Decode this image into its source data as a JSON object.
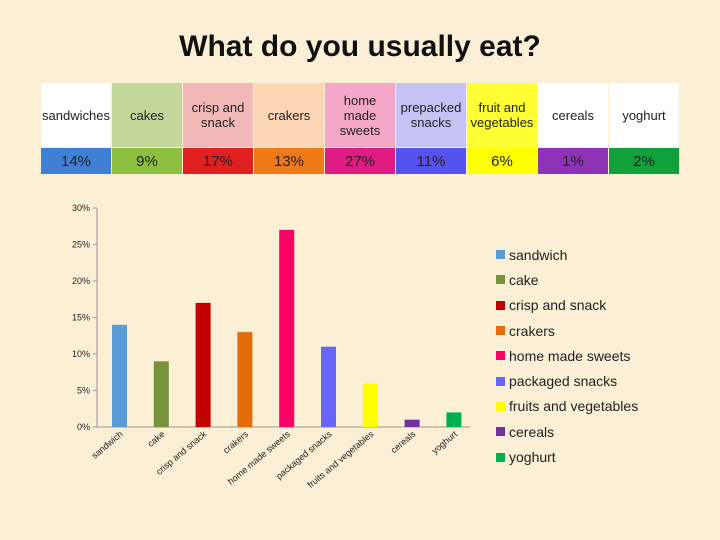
{
  "title": "What do you usually eat?",
  "table": {
    "headers": [
      "sandwiches",
      "cakes",
      "crisp and snack",
      "crakers",
      "home made sweets",
      "prepacked snacks",
      "fruit and vegetables",
      "cereals",
      "yoghurt"
    ],
    "values": [
      "14%",
      "9%",
      "17%",
      "13%",
      "27%",
      "11%",
      "6%",
      "1%",
      "2%"
    ],
    "header_bg": [
      "#ffffff",
      "#c4d79b",
      "#f2b8b8",
      "#fcd5b4",
      "#f4a7c9",
      "#c6c3f4",
      "#ffff33",
      "#ffffff",
      "#ffffff"
    ],
    "value_bg": [
      "#3f7fd6",
      "#8dc03f",
      "#e02020",
      "#f07a1a",
      "#e01c84",
      "#5553ef",
      "#ffff00",
      "#8e33b8",
      "#11a13a"
    ]
  },
  "chart_data": {
    "type": "bar",
    "categories": [
      "sandwich",
      "cake",
      "crisp and snack",
      "crakers",
      "home made sweets",
      "packaged snacks",
      "fruits and vegetables",
      "cereals",
      "yoghurt"
    ],
    "values": [
      14,
      9,
      17,
      13,
      27,
      11,
      6,
      1,
      2
    ],
    "colors": [
      "#5b9bd5",
      "#77933c",
      "#c00000",
      "#e46c0a",
      "#ff0066",
      "#6666ff",
      "#ffff00",
      "#7030a0",
      "#00b050"
    ],
    "ylim": [
      0,
      30
    ],
    "yticks": [
      0,
      5,
      10,
      15,
      20,
      25,
      30
    ],
    "ytick_labels": [
      "0%",
      "5%",
      "10%",
      "15%",
      "20%",
      "25%",
      "30%"
    ],
    "legend": [
      "sandwich",
      "cake",
      "crisp and snack",
      "crakers",
      "home made sweets",
      "packaged snacks",
      "fruits and vegetables",
      "cereals",
      "yoghurt"
    ]
  }
}
